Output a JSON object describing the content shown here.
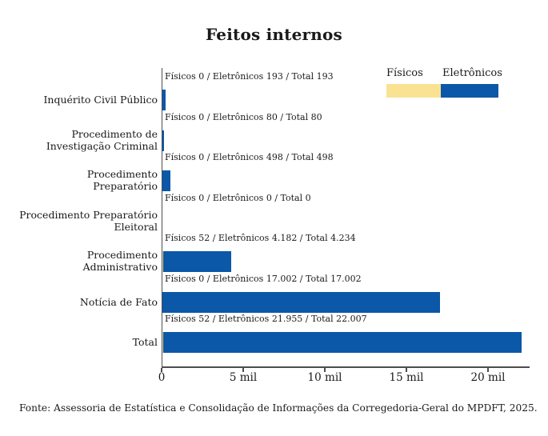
{
  "title": "Feitos internos",
  "legend": {
    "fisicos": "Físicos",
    "eletronicos": "Eletrônicos"
  },
  "colors": {
    "fisicos": "#fae293",
    "eletronicos": "#0b57a8",
    "axis": "#4d4d4d",
    "text": "#1a1a1a"
  },
  "axis": {
    "tick_labels": [
      "0",
      "5 mil",
      "10 mil",
      "15 mil",
      "20 mil"
    ],
    "tick_values": [
      0,
      5000,
      10000,
      15000,
      20000
    ],
    "max_value": 22550
  },
  "rows": [
    {
      "label": "Inquérito Civil Público",
      "annotation": "Físicos 0 / Eletrônicos 193 / Total 193",
      "fisicos": 0,
      "eletronicos": 193,
      "total": 193
    },
    {
      "label": "Procedimento de\nInvestigação Criminal",
      "annotation": "Físicos 0 / Eletrônicos 80 / Total 80",
      "fisicos": 0,
      "eletronicos": 80,
      "total": 80
    },
    {
      "label": "Procedimento\nPreparatório",
      "annotation": "Físicos 0 / Eletrônicos 498 / Total 498",
      "fisicos": 0,
      "eletronicos": 498,
      "total": 498
    },
    {
      "label": "Procedimento Preparatório\nEleitoral",
      "annotation": "Físicos 0 / Eletrônicos 0 / Total 0",
      "fisicos": 0,
      "eletronicos": 0,
      "total": 0
    },
    {
      "label": "Procedimento\nAdministrativo",
      "annotation": "Físicos 52 / Eletrônicos 4.182 / Total 4.234",
      "fisicos": 52,
      "eletronicos": 4182,
      "total": 4234
    },
    {
      "label": "Notícia de Fato",
      "annotation": "Físicos 0 / Eletrônicos 17.002 / Total 17.002",
      "fisicos": 0,
      "eletronicos": 17002,
      "total": 17002
    },
    {
      "label": "Total",
      "annotation": "Físicos 52 / Eletrônicos 21.955 / Total 22.007",
      "fisicos": 52,
      "eletronicos": 21955,
      "total": 22007
    }
  ],
  "chart_data": {
    "type": "bar",
    "orientation": "horizontal",
    "title": "Feitos internos",
    "categories": [
      "Inquérito Civil Público",
      "Procedimento de Investigação Criminal",
      "Procedimento Preparatório",
      "Procedimento Preparatório Eleitoral",
      "Procedimento Administrativo",
      "Notícia de Fato",
      "Total"
    ],
    "series": [
      {
        "name": "Físicos",
        "color": "#fae293",
        "values": [
          0,
          0,
          0,
          0,
          52,
          0,
          52
        ]
      },
      {
        "name": "Eletrônicos",
        "color": "#0b57a8",
        "values": [
          193,
          80,
          498,
          0,
          4182,
          17002,
          21955
        ]
      }
    ],
    "totals": [
      193,
      80,
      498,
      0,
      4234,
      17002,
      22007
    ],
    "stacked": true,
    "xlabel": "",
    "ylabel": "",
    "xlim": [
      0,
      22550
    ],
    "x_tick_labels": [
      "0",
      "5 mil",
      "10 mil",
      "15 mil",
      "20 mil"
    ],
    "grid": false,
    "legend_position": "top-right",
    "annotations": [
      "Físicos 0 / Eletrônicos 193 / Total 193",
      "Físicos 0 / Eletrônicos 80 / Total 80",
      "Físicos 0 / Eletrônicos 498 / Total 498",
      "Físicos 0 / Eletrônicos 0 / Total 0",
      "Físicos 52 / Eletrônicos 4.182 / Total 4.234",
      "Físicos 0 / Eletrônicos 17.002 / Total 17.002",
      "Físicos 52 / Eletrônicos 21.955 / Total 22.007"
    ]
  },
  "footer": "Fonte: Assessoria de Estatística e Consolidação de Informações da Corregedoria-Geral do MPDFT, 2025."
}
